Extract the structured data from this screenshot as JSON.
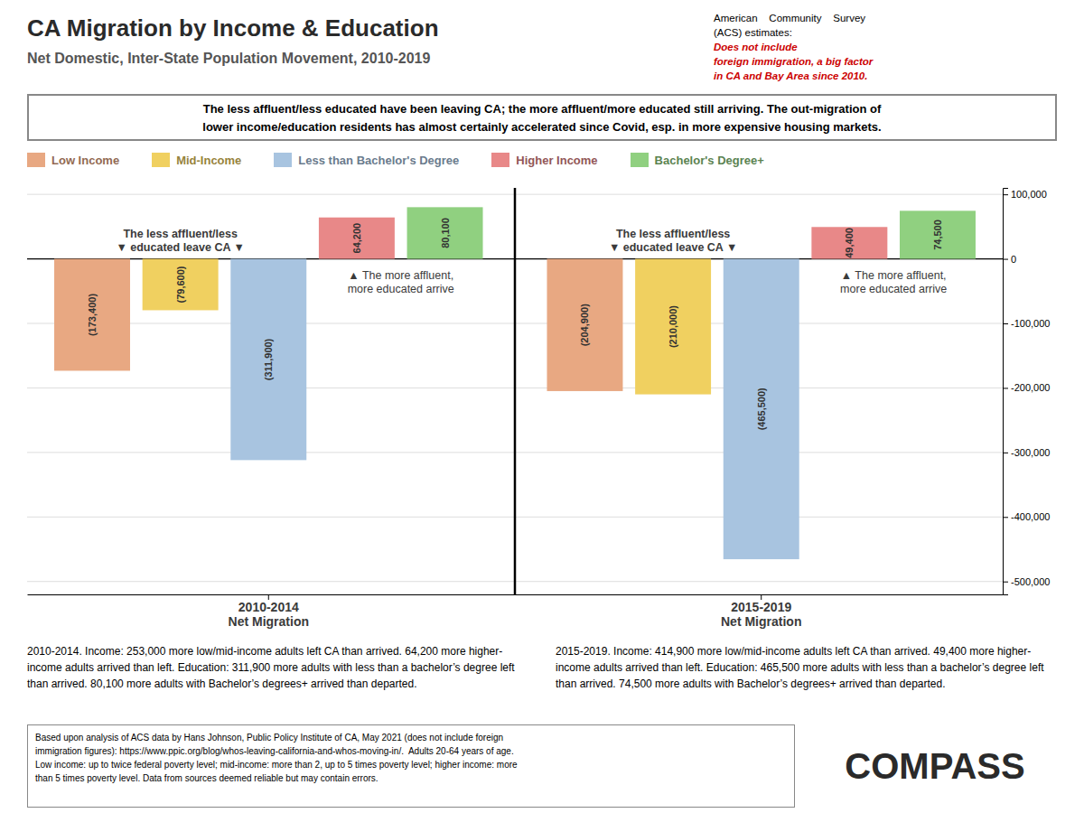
{
  "chart_data": {
    "type": "bar",
    "title": "CA Migration by Income & Education",
    "subtitle": "Net Domestic, Inter-State Population Movement, 2010-2019",
    "summary": [
      "The less affluent/less educated have been leaving CA; the more affluent/more educated still arriving. The out-migration of",
      "lower income/education residents has almost certainly accelerated since Covid, esp. in more expensive housing markets."
    ],
    "source_note": [
      "American    Community    Survey",
      "(ACS) estimates: ",
      "Does not include\nforeign immigration, a big factor\nin CA and Bay Area since 2010."
    ],
    "categories": [
      "2010-2014\nNet Migration",
      "2015-2019\nNet Migration"
    ],
    "series": [
      {
        "name": "Low Income",
        "color": "#E8A882",
        "values": [
          -173400,
          -204900
        ],
        "value_labels": [
          "(173,400)",
          "(204,900)"
        ]
      },
      {
        "name": "Mid-Income",
        "color": "#F0D060",
        "values": [
          -79600,
          -210000
        ],
        "value_labels": [
          "(79,600)",
          "(210,000)"
        ]
      },
      {
        "name": "Less than Bachelor's Degree",
        "color": "#A8C4E0",
        "values": [
          -311900,
          -465500
        ],
        "value_labels": [
          "(311,900)",
          "(465,500)"
        ]
      },
      {
        "name": "Higher Income",
        "color": "#E88888",
        "values": [
          64200,
          49400
        ],
        "value_labels": [
          "64,200",
          "49,400"
        ]
      },
      {
        "name": "Bachelor's Degree+",
        "color": "#90D080",
        "values": [
          80100,
          74500
        ],
        "value_labels": [
          "80,100",
          "74,500"
        ]
      }
    ],
    "annotations": [
      "The less affluent/less\n▼ educated leave CA ▼",
      "▲ The more affluent,\nmore educated arrive"
    ],
    "descriptions": [
      "2010-2014.  Income: 253,000 more low/mid-income adults left CA than arrived. 64,200 more higher-income adults arrived than left. Education: 311,900 more adults with less than a bachelor’s degree left than arrived. 80,100 more adults with Bachelor’s degrees+ arrived than departed.",
      "2015-2019.  Income: 414,900 more low/mid-income adults left CA than arrived. 49,400 more higher-income adults arrived than left. Education: 465,500 more adults with less than a bachelor’s degree left than arrived. 74,500 more adults with Bachelor’s degrees+ arrived than departed."
    ],
    "footer": "Based upon analysis of ACS data by Hans Johnson, Public Policy Institute of CA, May 2021 (does not include foreign\nimmigration figures): https://www.ppic.org/blog/whos-leaving-california-and-whos-moving-in/.  Adults 20-64 years of age.\nLow income: up to twice federal poverty level; mid-income: more than 2, up to 5 times poverty level; higher income: more\nthan 5 times poverty level. Data from sources deemed reliable but may contain errors.",
    "logo": "COMPASS",
    "ylim": [
      -520000,
      110000
    ],
    "yticks": [
      {
        "value": 100000,
        "label": "100,000"
      },
      0,
      {
        "value": -100000,
        "label": "-100,000"
      },
      {
        "value": -200000,
        "label": "-200,000"
      },
      {
        "value": -300000,
        "label": "-300,000"
      },
      {
        "value": -400000,
        "label": "-400,000"
      },
      {
        "value": -500000,
        "label": "-500,000"
      }
    ],
    "grid": true,
    "data_labels": true
  }
}
